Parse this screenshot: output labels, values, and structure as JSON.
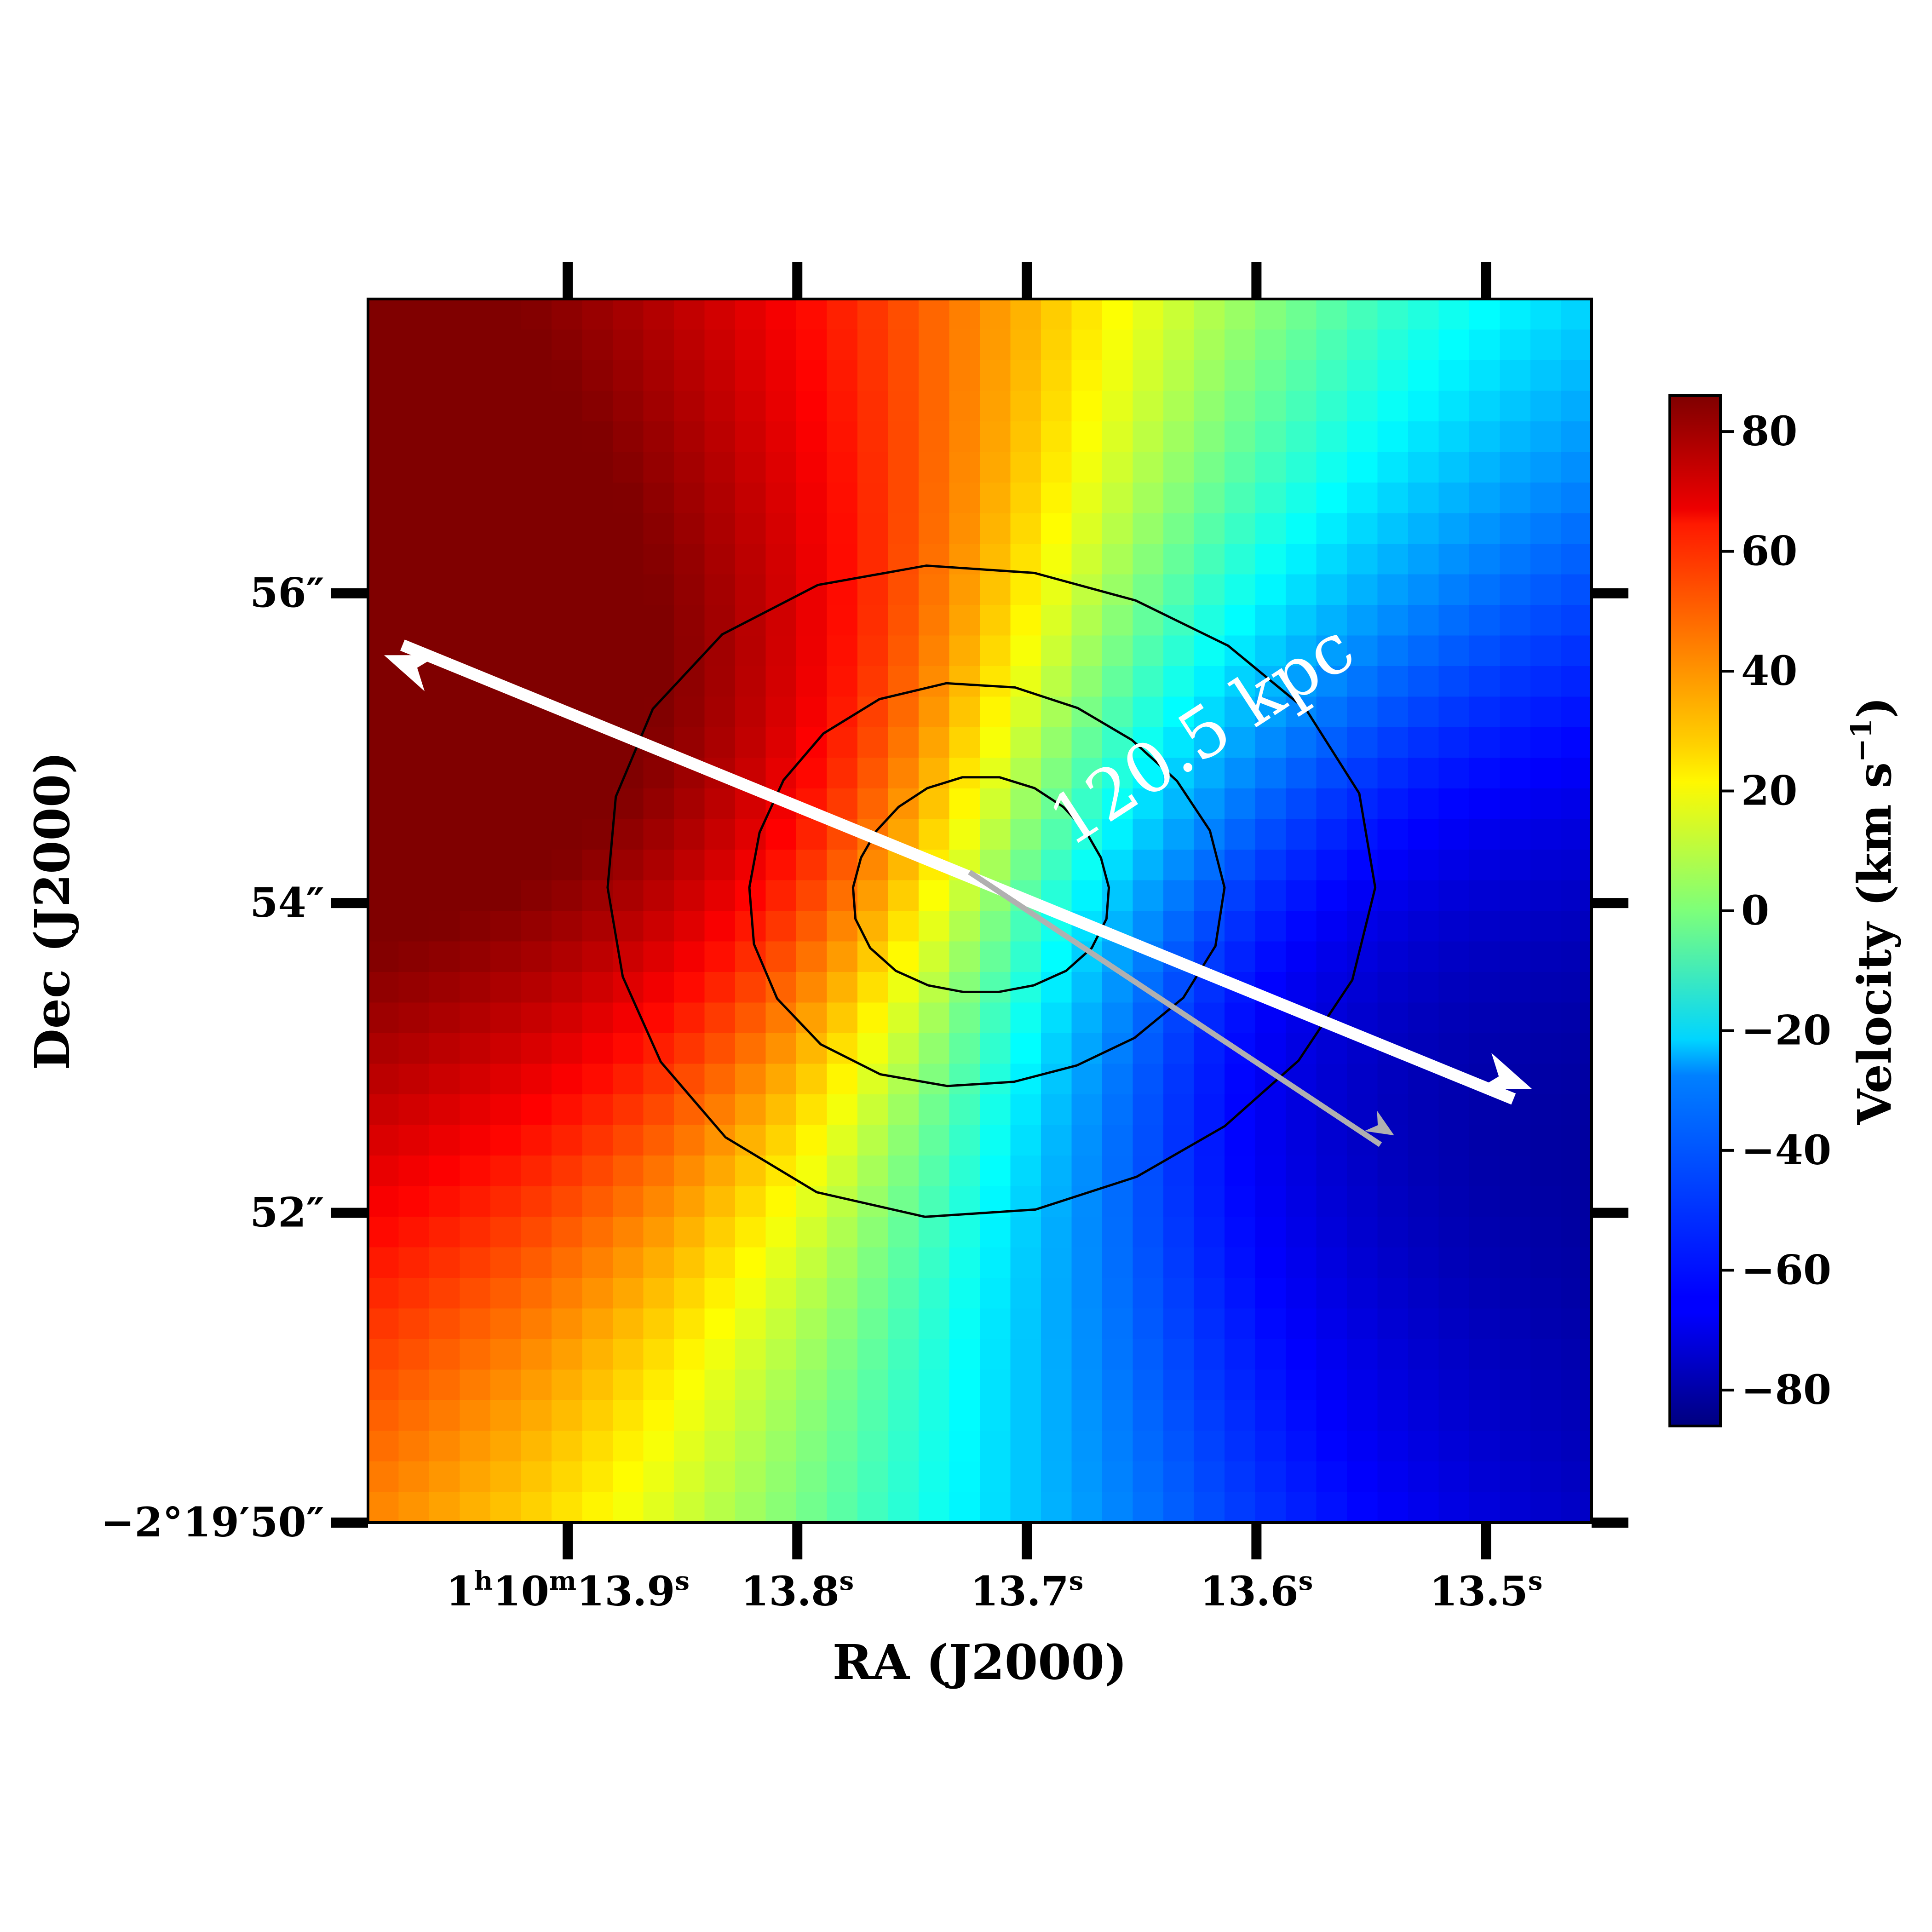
{
  "chart_data": {
    "type": "heatmap",
    "title": "",
    "xlabel": "RA (J2000)",
    "ylabel": "Dec (J2000)",
    "x_ticks": [
      {
        "value": 13.9,
        "main": "1",
        "sup1": "h",
        "mid": "10",
        "sup2": "m",
        "tail": "13.9",
        "sup3": "s"
      },
      {
        "value": 13.8,
        "main": "13.8",
        "sup": "s"
      },
      {
        "value": 13.7,
        "main": "13.7",
        "sup": "s"
      },
      {
        "value": 13.6,
        "main": "13.6",
        "sup": "s"
      },
      {
        "value": 13.5,
        "main": "13.5",
        "sup": "s"
      }
    ],
    "xlim_seconds": [
      13.987,
      13.454
    ],
    "y_ticks": [
      {
        "value": 50,
        "label": "−2°19′50″"
      },
      {
        "value": 52,
        "label": "52″"
      },
      {
        "value": 54,
        "label": "54″"
      },
      {
        "value": 56,
        "label": "56″"
      }
    ],
    "ylim_arcsec": [
      57.9,
      50.0
    ],
    "colorbar": {
      "label_main": "Velocity (km s",
      "label_sup": "−1",
      "label_end": ")",
      "vmin": -86,
      "vmax": 86,
      "colormap": "jet",
      "ticks": [
        {
          "value": 80,
          "label": "80"
        },
        {
          "value": 60,
          "label": "60"
        },
        {
          "value": 40,
          "label": "40"
        },
        {
          "value": 20,
          "label": "20"
        },
        {
          "value": 0,
          "label": "0"
        },
        {
          "value": -20,
          "label": "−20"
        },
        {
          "value": -40,
          "label": "−40"
        },
        {
          "value": -60,
          "label": "−60"
        },
        {
          "value": -80,
          "label": "−80"
        }
      ]
    },
    "velocity_field": {
      "grid_size": 40,
      "description_of_model": "smooth rotation field",
      "center": {
        "ra_s": 13.72,
        "dec_arcsec": 54.1
      },
      "amplitude_kms": 86,
      "position_angle_deg": 68
    },
    "contours": {
      "center": {
        "ra_s": 13.72,
        "dec_arcsec": 54.1
      },
      "levels_radii_arcsec": [
        0.7,
        1.3,
        2.1
      ],
      "color": "#000000"
    },
    "annotations": [
      {
        "type": "double-arrow",
        "color": "#ffffff",
        "start": {
          "ra_s": 13.98,
          "dec_arcsec": 55.6
        },
        "end": {
          "ra_s": 13.48,
          "dec_arcsec": 52.8
        }
      },
      {
        "type": "arrow",
        "color": "#b0b0b0",
        "start": {
          "ra_s": 13.725,
          "dec_arcsec": 54.2
        },
        "end": {
          "ra_s": 13.54,
          "dec_arcsec": 52.5
        }
      },
      {
        "type": "text",
        "text": "120.5 kpc",
        "color": "#ffffff"
      }
    ]
  }
}
